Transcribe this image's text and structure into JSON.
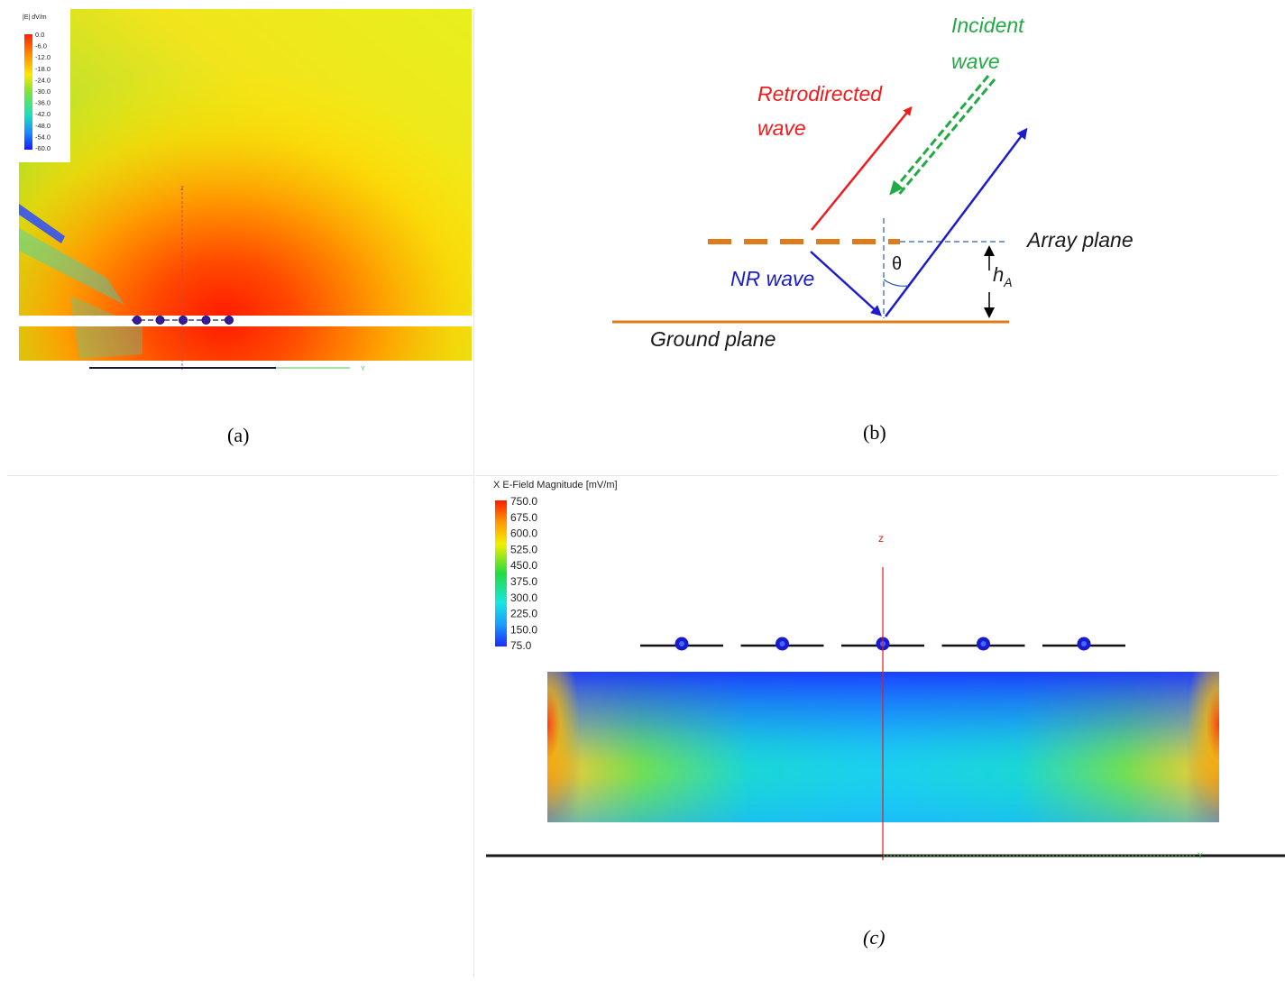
{
  "panel_a": {
    "caption": "(a)",
    "legend_title": "|E| dV/m",
    "legend_values": [
      "0.0",
      "-6.0",
      "-12.0",
      "-18.0",
      "-24.0",
      "-30.0",
      "-36.0",
      "-42.0",
      "-48.0",
      "-54.0",
      "-60.0"
    ],
    "axis_z": "z",
    "axis_y": "Y",
    "element_count": 5
  },
  "panel_b": {
    "caption": "(b)",
    "incident_line1": "Incident",
    "incident_line2": "wave",
    "retro_line1": "Retrodirected",
    "retro_line2": "wave",
    "array_plane": "Array plane",
    "nr_wave": "NR wave",
    "theta": "θ",
    "height_label": "h",
    "height_sub": "A",
    "ground_plane": "Ground plane",
    "colors": {
      "incident": "#22aa44",
      "retro": "#ee1c1c",
      "nr": "#1c1ccc",
      "plane": "#e07b1a",
      "dash": "#2a5ea8"
    }
  },
  "panel_c": {
    "caption": "(c)",
    "legend_title": "X E-Field Magnitude [mV/m]",
    "legend_values": [
      "750.0",
      "675.0",
      "600.0",
      "525.0",
      "450.0",
      "375.0",
      "300.0",
      "225.0",
      "150.0",
      "75.0"
    ],
    "axis_z": "z",
    "axis_y": "Y",
    "element_count": 5
  }
}
